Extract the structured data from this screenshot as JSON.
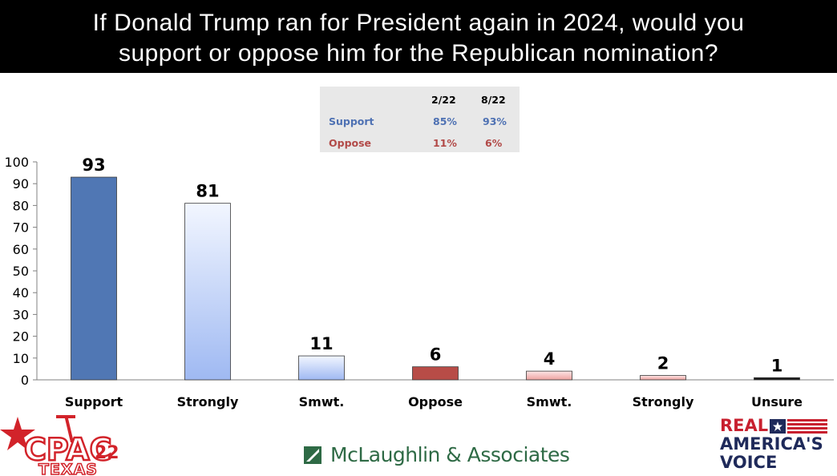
{
  "header": {
    "title_line1": "If Donald Trump ran for President again in 2024, would you",
    "title_line2": "support or oppose him for the Republican nomination?"
  },
  "summary_table": {
    "columns": [
      "2/22",
      "8/22"
    ],
    "rows": [
      {
        "label": "Support",
        "values": [
          "85%",
          "93%"
        ],
        "color": "#4e71b3"
      },
      {
        "label": "Oppose",
        "values": [
          "11%",
          "6%"
        ],
        "color": "#b24a48"
      }
    ]
  },
  "chart_data": {
    "type": "bar",
    "title": "If Donald Trump ran for President again in 2024, would you support or oppose him for the Republican nomination?",
    "categories": [
      "Support",
      "Strongly",
      "Smwt.",
      "Oppose",
      "Smwt.",
      "Strongly",
      "Unsure"
    ],
    "values": [
      93,
      81,
      11,
      6,
      4,
      2,
      1
    ],
    "data_labels": [
      "93",
      "81",
      "11",
      "6",
      "4",
      "2",
      "1"
    ],
    "bar_styles": [
      {
        "fill": "#5077b4",
        "gradient": false
      },
      {
        "fill": "#eef3ff",
        "fill2": "#a9c0f3",
        "gradient": true
      },
      {
        "fill": "#eef3ff",
        "fill2": "#a9c0f3",
        "gradient": true
      },
      {
        "fill": "#b84c47",
        "gradient": false
      },
      {
        "fill": "#fde2e2",
        "fill2": "#f0a8a6",
        "gradient": true
      },
      {
        "fill": "#fde2e2",
        "fill2": "#f0a8a6",
        "gradient": true
      },
      {
        "fill": "#1a1a1a",
        "gradient": false
      }
    ],
    "ylim": [
      0,
      100
    ],
    "yticks": [
      0,
      10,
      20,
      30,
      40,
      50,
      60,
      70,
      80,
      90,
      100
    ],
    "xlabel": "",
    "ylabel": "",
    "grid": false,
    "legend": "none"
  },
  "logos": {
    "cpac": {
      "main": "CPAC",
      "number": "22",
      "sub": "TEXAS"
    },
    "mclaughlin": {
      "name": "McLaughlin & Associates"
    },
    "rav": {
      "line1": "REAL",
      "line2": "AMERICA'S",
      "line3": "VOICE"
    }
  },
  "colors": {
    "title_bg": "#000000",
    "support": "#5077b4",
    "oppose": "#b84c47",
    "mclaughlin_green": "#2e6a45",
    "rav_red": "#c8202f",
    "rav_navy": "#1f2a5a"
  }
}
